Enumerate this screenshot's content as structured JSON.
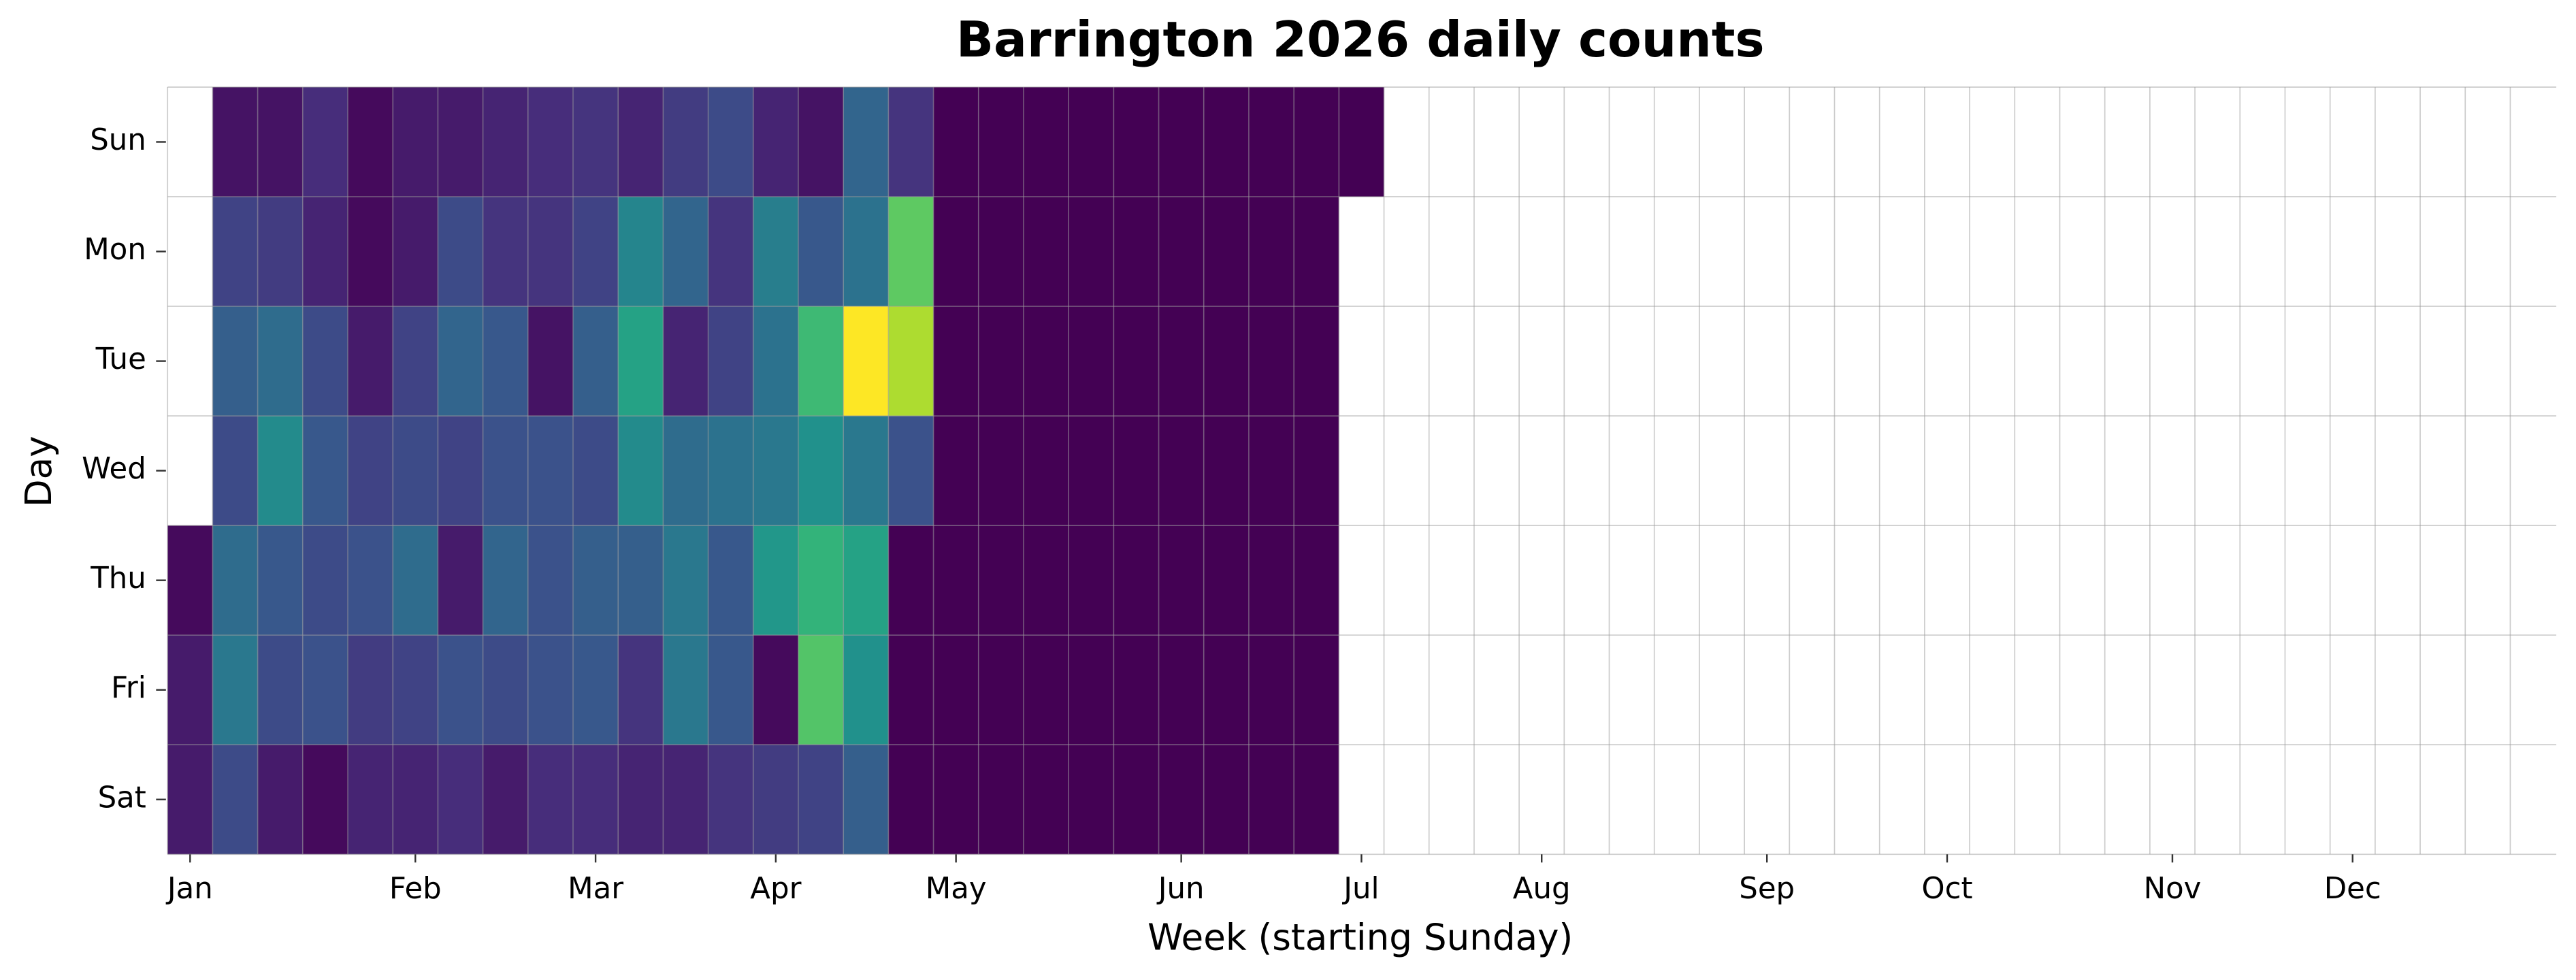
{
  "chart_data": {
    "type": "calendar-heatmap",
    "title": "Barrington 2026 daily counts",
    "x_label": "Week (starting Sunday)",
    "y_label": "Day",
    "colormap": "viridis",
    "categories": [
      "Jan",
      null,
      null,
      null,
      null,
      "Feb",
      null,
      null,
      null,
      "Mar",
      null,
      null,
      null,
      "Apr",
      null,
      null,
      null,
      "May",
      null,
      null,
      null,
      null,
      "Jun",
      null,
      null,
      null,
      "Jul",
      null,
      null,
      null,
      "Aug",
      null,
      null,
      null,
      null,
      "Sep",
      null,
      null,
      null,
      "Oct",
      null,
      null,
      null,
      null,
      "Nov",
      null,
      null,
      null,
      "Dec",
      null,
      null,
      null
    ],
    "series": [
      {
        "name": "Sun",
        "values": [
          null,
          2,
          2,
          5,
          1,
          3,
          3,
          4,
          5,
          6,
          4,
          7,
          9,
          4,
          2,
          13,
          6,
          0,
          0,
          0,
          0,
          0,
          0,
          0,
          0,
          0,
          0,
          null,
          null,
          null,
          null,
          null,
          null,
          null,
          null,
          null,
          null,
          null,
          null,
          null,
          null,
          null,
          null,
          null,
          null,
          null,
          null,
          null,
          null,
          null,
          null,
          null
        ]
      },
      {
        "name": "Mon",
        "values": [
          null,
          8,
          7,
          4,
          1,
          3,
          9,
          6,
          6,
          8,
          18,
          13,
          6,
          17,
          11,
          15,
          30,
          0,
          0,
          0,
          0,
          0,
          0,
          0,
          0,
          0,
          null,
          null,
          null,
          null,
          null,
          null,
          null,
          null,
          null,
          null,
          null,
          null,
          null,
          null,
          null,
          null,
          null,
          null,
          null,
          null,
          null,
          null,
          null,
          null,
          null,
          null
        ]
      },
      {
        "name": "Tue",
        "values": [
          null,
          12,
          14,
          9,
          3,
          8,
          13,
          11,
          2,
          12,
          23,
          4,
          8,
          15,
          27,
          40,
          35,
          0,
          0,
          0,
          0,
          0,
          0,
          0,
          0,
          0,
          null,
          null,
          null,
          null,
          null,
          null,
          null,
          null,
          null,
          null,
          null,
          null,
          null,
          null,
          null,
          null,
          null,
          null,
          null,
          null,
          null,
          null,
          null,
          null,
          null,
          null
        ]
      },
      {
        "name": "Wed",
        "values": [
          null,
          9,
          19,
          11,
          8,
          9,
          8,
          10,
          10,
          9,
          19,
          14,
          15,
          16,
          20,
          16,
          10,
          0,
          0,
          0,
          0,
          0,
          0,
          0,
          0,
          0,
          null,
          null,
          null,
          null,
          null,
          null,
          null,
          null,
          null,
          null,
          null,
          null,
          null,
          null,
          null,
          null,
          null,
          null,
          null,
          null,
          null,
          null,
          null,
          null,
          null,
          null
        ]
      },
      {
        "name": "Thu",
        "values": [
          1,
          14,
          11,
          9,
          10,
          14,
          3,
          13,
          10,
          12,
          12,
          16,
          11,
          21,
          26,
          23,
          0,
          0,
          0,
          0,
          0,
          0,
          0,
          0,
          0,
          0,
          null,
          null,
          null,
          null,
          null,
          null,
          null,
          null,
          null,
          null,
          null,
          null,
          null,
          null,
          null,
          null,
          null,
          null,
          null,
          null,
          null,
          null,
          null,
          null,
          null,
          null
        ]
      },
      {
        "name": "Fri",
        "values": [
          3,
          16,
          9,
          10,
          7,
          8,
          10,
          9,
          10,
          11,
          6,
          16,
          11,
          1,
          29,
          20,
          0,
          0,
          0,
          0,
          0,
          0,
          0,
          0,
          0,
          0,
          null,
          null,
          null,
          null,
          null,
          null,
          null,
          null,
          null,
          null,
          null,
          null,
          null,
          null,
          null,
          null,
          null,
          null,
          null,
          null,
          null,
          null,
          null,
          null,
          null,
          null
        ]
      },
      {
        "name": "Sat",
        "values": [
          3,
          9,
          3,
          1,
          4,
          4,
          5,
          3,
          5,
          5,
          4,
          4,
          6,
          7,
          8,
          12,
          0,
          0,
          0,
          0,
          0,
          0,
          0,
          0,
          0,
          0,
          null,
          null,
          null,
          null,
          null,
          null,
          null,
          null,
          null,
          null,
          null,
          null,
          null,
          null,
          null,
          null,
          null,
          null,
          null,
          null,
          null,
          null,
          null,
          null,
          null,
          null
        ]
      }
    ]
  }
}
